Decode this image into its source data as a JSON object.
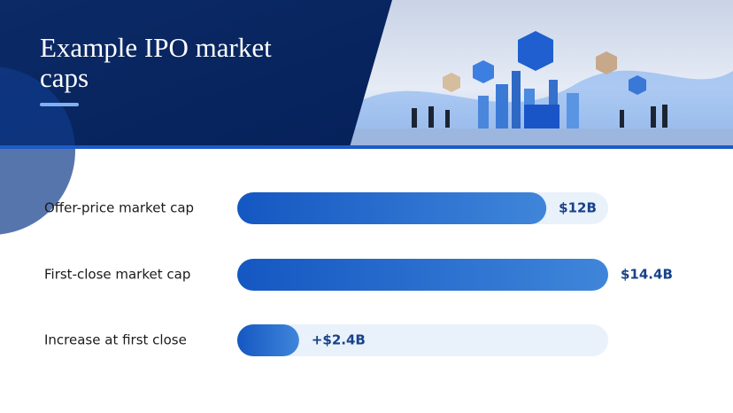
{
  "chart_data": {
    "type": "bar",
    "orientation": "horizontal",
    "title": "Example IPO market caps",
    "categories": [
      "Offer-price market cap",
      "First-close market cap",
      "Increase at first close"
    ],
    "values": [
      12,
      14.4,
      2.4
    ],
    "value_labels": [
      "$12B",
      "$14.4B",
      "+$2.4B"
    ],
    "color": "#1f63c9"
  }
}
